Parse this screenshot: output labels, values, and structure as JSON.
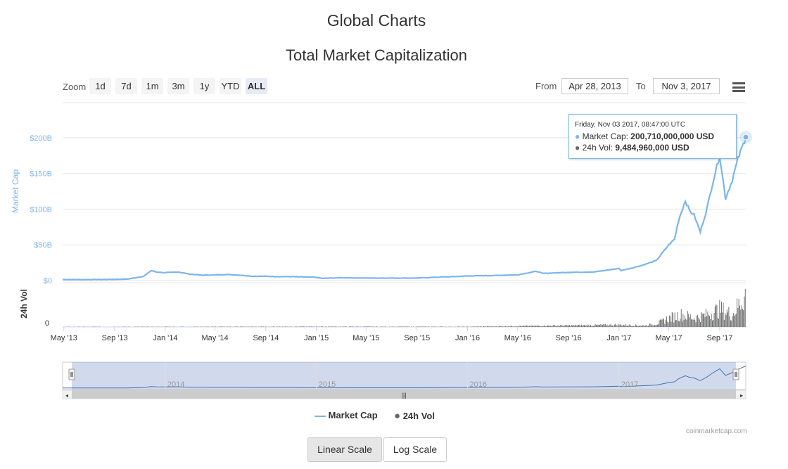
{
  "page": {
    "title": "Global Charts",
    "chart_title": "Total Market Capitalization"
  },
  "zoom": {
    "label": "Zoom",
    "buttons": [
      "1d",
      "7d",
      "1m",
      "3m",
      "1y",
      "YTD",
      "ALL"
    ],
    "active": "ALL"
  },
  "range": {
    "from_label": "From",
    "from_value": "Apr 28, 2013",
    "to_label": "To",
    "to_value": "Nov 3, 2017"
  },
  "tooltip": {
    "header": "Friday, Nov 03 2017, 08:47:00 UTC",
    "market_cap_label": "Market Cap: ",
    "market_cap_value": "200,710,000,000 USD",
    "vol_label": "24h Vol: ",
    "vol_value": "9,484,960,000 USD"
  },
  "legend": {
    "market_cap": "Market Cap",
    "vol": "24h Vol"
  },
  "credits": "coinmarketcap.com",
  "scale_buttons": {
    "linear": "Linear Scale",
    "log": "Log Scale",
    "active": "linear"
  },
  "colors": {
    "market_cap": "#7cb5ec",
    "volume": "#666666",
    "navigator_line": "#4572a7",
    "navigator_mask": "rgba(102,133,194,0.3)"
  },
  "chart_data": {
    "type": "line",
    "xlabel": "",
    "ylabel": "Market Cap",
    "ylabel_volume": "24h Vol",
    "x_tick_labels": [
      "May '13",
      "Sep '13",
      "Jan '14",
      "May '14",
      "Sep '14",
      "Jan '15",
      "May '15",
      "Sep '15",
      "Jan '16",
      "May '16",
      "Sep '16",
      "Jan '17",
      "May '17",
      "Sep '17"
    ],
    "y_tick_labels": [
      "$0",
      "$50B",
      "$100B",
      "$150B",
      "$200B"
    ],
    "volume_tick_labels": [
      "0"
    ],
    "ylim": [
      0,
      250
    ],
    "y_unit": "billion USD",
    "navigator_year_labels": [
      "2014",
      "2015",
      "2016",
      "2017"
    ],
    "series": [
      {
        "name": "Market Cap",
        "x": [
          "2013-04-28",
          "2013-06-01",
          "2013-08-01",
          "2013-10-01",
          "2013-11-10",
          "2013-11-28",
          "2013-12-10",
          "2014-01-01",
          "2014-02-01",
          "2014-03-01",
          "2014-04-01",
          "2014-05-01",
          "2014-06-01",
          "2014-07-01",
          "2014-08-01",
          "2014-09-01",
          "2014-10-01",
          "2014-11-01",
          "2014-12-01",
          "2015-01-01",
          "2015-01-15",
          "2015-03-01",
          "2015-05-01",
          "2015-07-01",
          "2015-09-01",
          "2015-11-01",
          "2015-12-01",
          "2016-01-01",
          "2016-03-01",
          "2016-05-01",
          "2016-06-15",
          "2016-07-01",
          "2016-09-01",
          "2016-11-01",
          "2017-01-01",
          "2017-01-05",
          "2017-02-01",
          "2017-03-01",
          "2017-04-01",
          "2017-05-01",
          "2017-05-15",
          "2017-05-25",
          "2017-06-10",
          "2017-06-20",
          "2017-07-01",
          "2017-07-16",
          "2017-08-01",
          "2017-08-15",
          "2017-09-01",
          "2017-09-15",
          "2017-10-01",
          "2017-10-15",
          "2017-11-03"
        ],
        "values": [
          1.5,
          1.3,
          1.4,
          2.0,
          6.0,
          14.0,
          12.0,
          11.0,
          12.0,
          9.0,
          7.5,
          8.0,
          8.5,
          7.5,
          6.0,
          6.0,
          5.5,
          5.5,
          5.0,
          4.5,
          3.0,
          4.0,
          3.5,
          3.5,
          3.5,
          5.0,
          5.5,
          6.5,
          7.0,
          8.0,
          13.0,
          10.0,
          11.5,
          12.0,
          17.0,
          14.0,
          17.5,
          22.0,
          28.0,
          50.0,
          58.0,
          85.0,
          112.0,
          98.0,
          92.0,
          68.0,
          100.0,
          137.0,
          175.0,
          115.0,
          140.0,
          170.0,
          200.71
        ]
      },
      {
        "name": "24h Vol",
        "x": [
          "2013-04-28",
          "2015-01-01",
          "2016-01-01",
          "2016-06-01",
          "2017-01-01",
          "2017-03-01",
          "2017-04-01",
          "2017-05-01",
          "2017-06-01",
          "2017-07-01",
          "2017-08-01",
          "2017-09-01",
          "2017-10-01",
          "2017-11-03"
        ],
        "values": [
          0.05,
          0.1,
          0.08,
          0.3,
          0.6,
          0.4,
          0.9,
          2.5,
          3.5,
          2.5,
          3.5,
          5.0,
          3.5,
          9.48
        ]
      }
    ]
  }
}
